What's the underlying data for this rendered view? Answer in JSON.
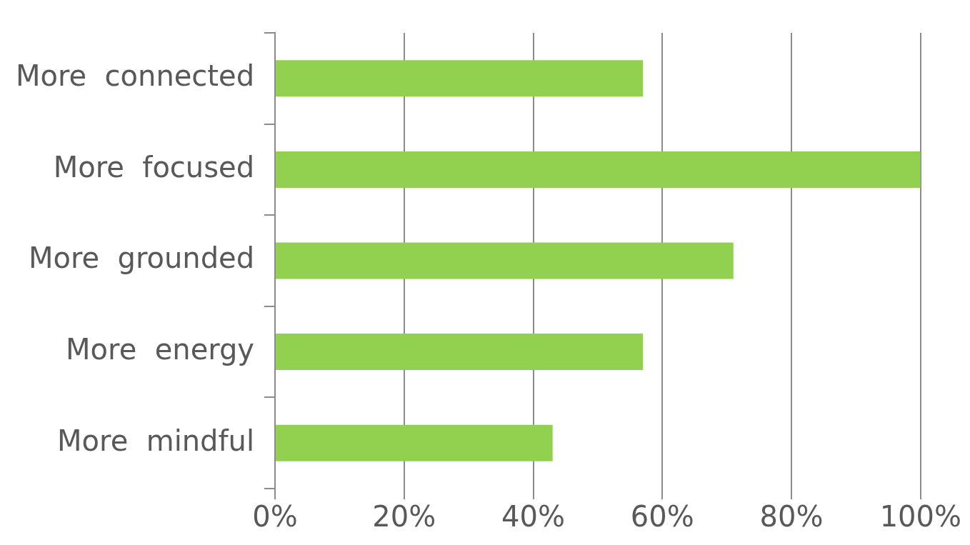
{
  "chart_data": {
    "type": "bar",
    "orientation": "horizontal",
    "categories": [
      "More  connected",
      "More  focused",
      "More  grounded",
      "More  energy",
      "More  mindful"
    ],
    "values": [
      57,
      100,
      71,
      57,
      43
    ],
    "color": "#92d050",
    "xlim": [
      0,
      100
    ],
    "xticks": [
      {
        "value": 0,
        "label": "0%"
      },
      {
        "value": 20,
        "label": "20%"
      },
      {
        "value": 40,
        "label": "40%"
      },
      {
        "value": 60,
        "label": "60%"
      },
      {
        "value": 80,
        "label": "80%"
      },
      {
        "value": 100,
        "label": "100%"
      }
    ],
    "grid": "x",
    "legend": false
  }
}
